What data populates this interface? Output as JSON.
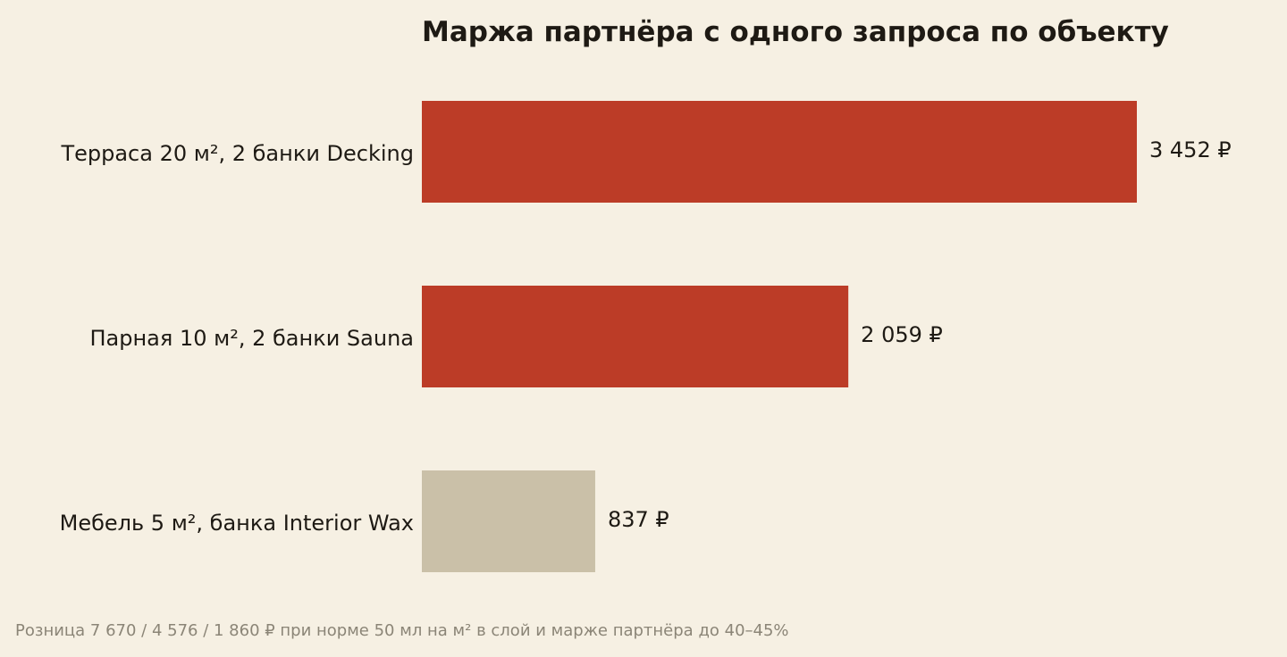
{
  "chart_data": {
    "type": "bar",
    "orientation": "horizontal",
    "title": "Маржа партнёра с одного запроса по объекту",
    "categories": [
      "Терраса 20 м², 2 банки Decking",
      "Парная 10 м², 2 банки Sauna",
      "Мебель 5 м², банка Interior Wax"
    ],
    "values": [
      3452,
      2059,
      837
    ],
    "value_labels": [
      "3 452 ₽",
      "2 059 ₽",
      "837 ₽"
    ],
    "bar_colors": [
      "#BC3C27",
      "#BC3C27",
      "#CAC0A8"
    ],
    "xlim": [
      0,
      3452
    ],
    "grid": false,
    "legend": "none",
    "footnote": "Розница 7 670 / 4 576 / 1 860 ₽ при норме 50 мл на м² в слой и марже партнёра до 40–45%"
  },
  "colors": {
    "background": "#F6F0E3",
    "text": "#1E1A14",
    "footnote_text": "#8B8577",
    "accent": "#BC3C27",
    "muted": "#CAC0A8"
  }
}
